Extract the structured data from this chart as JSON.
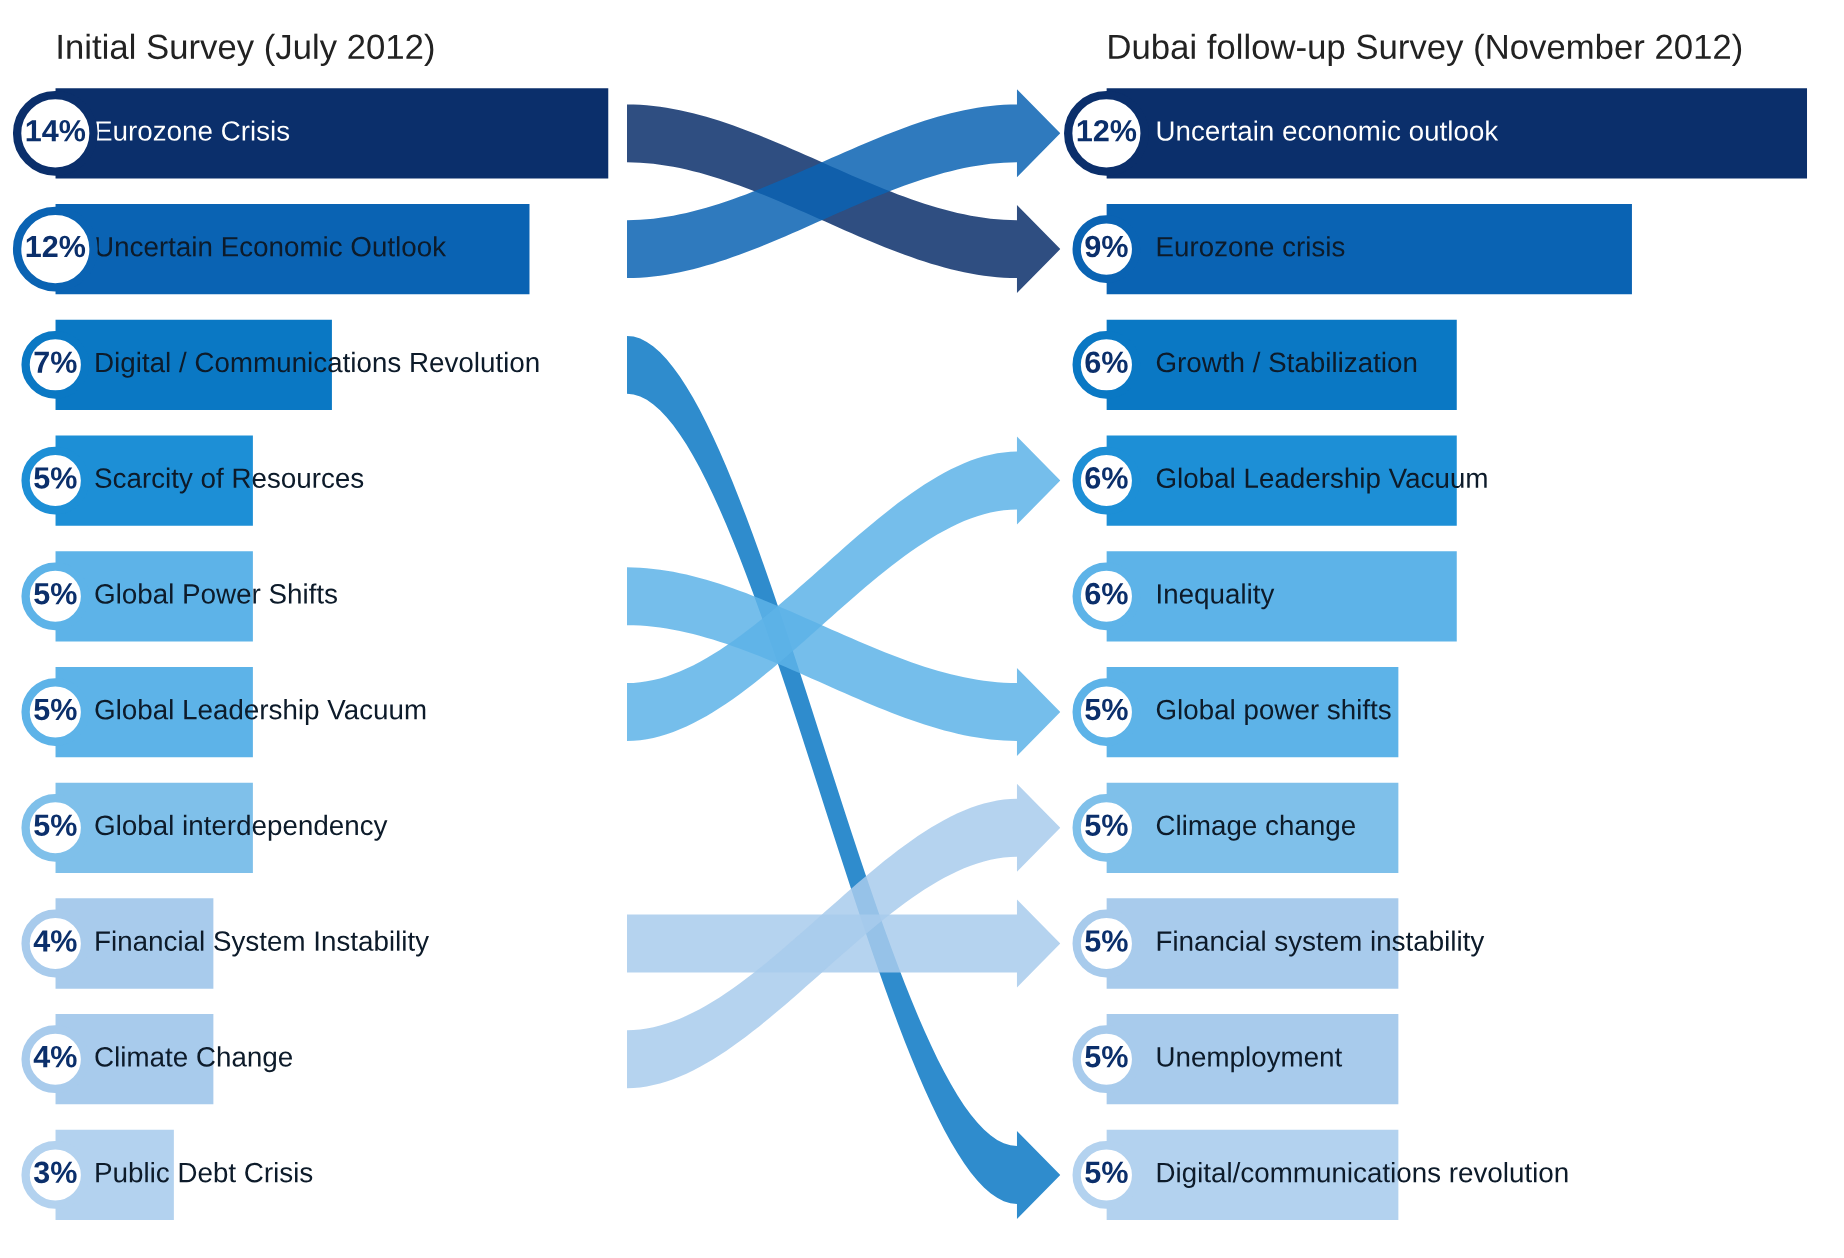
{
  "chart_data": [
    {
      "type": "bar",
      "orientation": "horizontal",
      "title": "Initial Survey (July 2012)",
      "tick_labels": false,
      "xlim": [
        0,
        14
      ],
      "categories": [
        "Eurozone Crisis",
        "Uncertain Economic Outlook",
        "Digital / Communications Revolution",
        "Scarcity of Resources",
        "Global Power Shifts",
        "Global Leadership Vacuum",
        "Global interdependency",
        "Financial System Instability",
        "Climate Change",
        "Public Debt Crisis"
      ],
      "values": [
        14,
        12,
        7,
        5,
        5,
        5,
        5,
        4,
        4,
        3
      ],
      "value_labels": [
        "14%",
        "12%",
        "7%",
        "5%",
        "5%",
        "5%",
        "5%",
        "4%",
        "4%",
        "3%"
      ],
      "colors": [
        "#0b2f6b",
        "#0a63b3",
        "#0a78c4",
        "#1d8fd6",
        "#5db3e8",
        "#5db3e8",
        "#7fc0ea",
        "#a8cbec",
        "#a8cbec",
        "#b3d2ef"
      ]
    },
    {
      "type": "bar",
      "orientation": "horizontal",
      "title": "Dubai follow-up Survey (November 2012)",
      "tick_labels": false,
      "xlim": [
        0,
        12
      ],
      "categories": [
        "Uncertain economic outlook",
        "Eurozone crisis",
        "Growth / Stabilization",
        "Global Leadership Vacuum",
        "Inequality",
        "Global power shifts",
        "Climage change",
        "Financial system instability",
        "Unemployment",
        "Digital/communications revolution"
      ],
      "values": [
        12,
        9,
        6,
        6,
        6,
        5,
        5,
        5,
        5,
        5
      ],
      "value_labels": [
        "12%",
        "9%",
        "6%",
        "6%",
        "6%",
        "5%",
        "5%",
        "5%",
        "5%",
        "5%"
      ],
      "colors": [
        "#0b2f6b",
        "#0a63b3",
        "#0a78c4",
        "#1d8fd6",
        "#5db3e8",
        "#5db3e8",
        "#7fc0ea",
        "#a8cbec",
        "#a8cbec",
        "#b3d2ef"
      ]
    }
  ]
}
